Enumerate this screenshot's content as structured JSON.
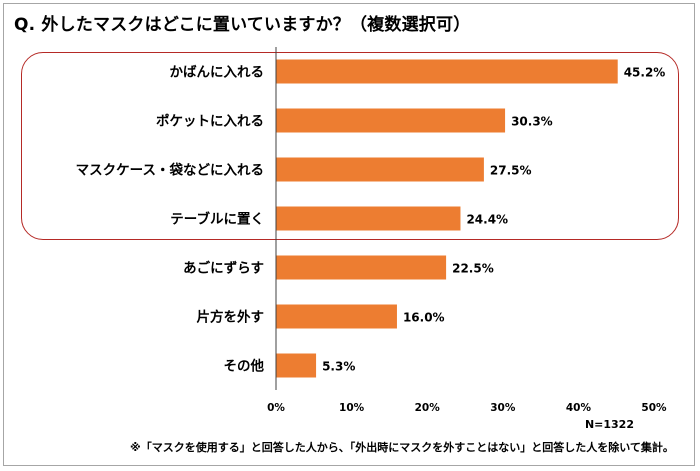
{
  "title": "Q. 外したマスクはどこに置いていますか？（複数選択可）",
  "n_text": "N=1322",
  "footnote": "※「マスクを使用する」と回答した人から、「外出時にマスクを外すことはない」と回答した人を除いて集計。",
  "colors": {
    "bar": "#ed7d31",
    "highlight": "#b52a26",
    "axis": "#404040"
  },
  "chart_data": {
    "type": "bar",
    "orientation": "horizontal",
    "categories": [
      "かばんに入れる",
      "ポケットに入れる",
      "マスクケース・袋などに入れる",
      "テーブルに置く",
      "あごにずらす",
      "片方を外す",
      "その他"
    ],
    "values": [
      45.2,
      30.3,
      27.5,
      24.4,
      22.5,
      16.0,
      5.3
    ],
    "value_labels": [
      "45.2%",
      "30.3%",
      "27.5%",
      "24.4%",
      "22.5%",
      "16.0%",
      "5.3%"
    ],
    "xlim": [
      0,
      50
    ],
    "xticks": [
      "0%",
      "10%",
      "20%",
      "30%",
      "40%",
      "50%"
    ],
    "xlabel": "",
    "ylabel": "",
    "grid": false
  }
}
